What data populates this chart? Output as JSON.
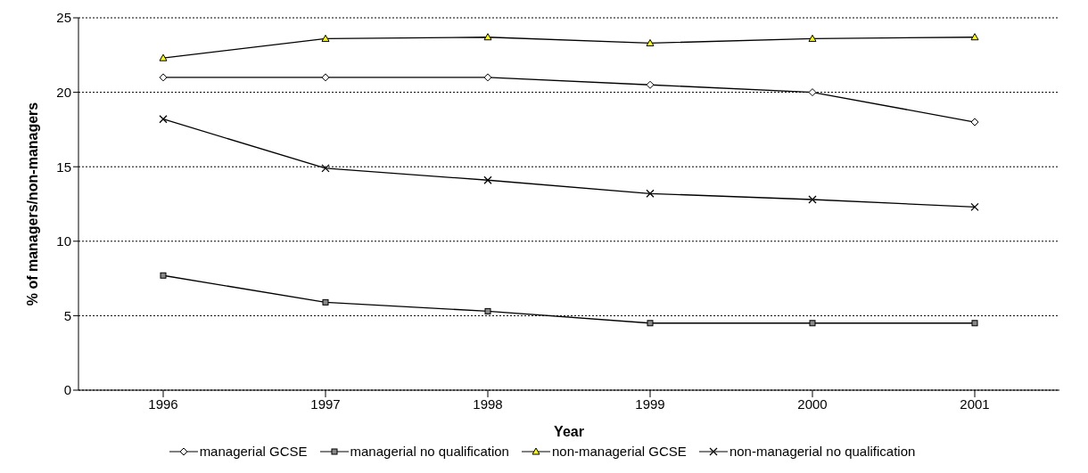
{
  "chart_data": {
    "type": "line",
    "xlabel": "Year",
    "ylabel": "% of managers/non-managers",
    "categories": [
      "1996",
      "1997",
      "1998",
      "1999",
      "2000",
      "2001"
    ],
    "series": [
      {
        "name": "managerial GCSE",
        "color": "#000000",
        "marker": "diamond",
        "values": [
          21,
          21,
          21,
          20.5,
          20,
          18
        ]
      },
      {
        "name": "managerial no qualification",
        "color": "#000000",
        "marker": "square",
        "values": [
          7.7,
          5.9,
          5.3,
          4.5,
          4.5,
          4.5
        ]
      },
      {
        "name": "non-managerial GCSE",
        "color": "#000000",
        "marker": "triangle",
        "values": [
          22.3,
          23.6,
          23.7,
          23.3,
          23.6,
          23.7
        ]
      },
      {
        "name": "non-managerial no qualification",
        "color": "#000000",
        "marker": "cross",
        "values": [
          18.2,
          14.9,
          14.1,
          13.2,
          12.8,
          12.3
        ]
      }
    ],
    "ylim": [
      0,
      25
    ],
    "yticks": [
      0,
      5,
      10,
      15,
      20,
      25
    ],
    "grid": "y",
    "legend": "bottom",
    "line_style": "solid"
  }
}
